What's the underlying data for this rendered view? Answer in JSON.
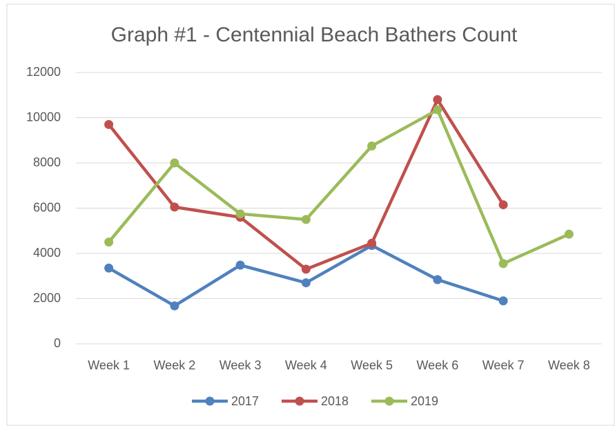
{
  "chart_data": {
    "type": "line",
    "title": "Graph #1 - Centennial Beach Bathers Count",
    "categories": [
      "Week 1",
      "Week 2",
      "Week 3",
      "Week 4",
      "Week 5",
      "Week 6",
      "Week 7",
      "Week 8"
    ],
    "series": [
      {
        "name": "2017",
        "color": "#4f81bd",
        "values": [
          3350,
          1680,
          3480,
          2700,
          4350,
          2840,
          1900,
          null
        ]
      },
      {
        "name": "2018",
        "color": "#c0504d",
        "values": [
          9700,
          6050,
          5600,
          3300,
          4450,
          10800,
          6150,
          null
        ]
      },
      {
        "name": "2019",
        "color": "#9bbb59",
        "values": [
          4500,
          8000,
          5750,
          5500,
          8750,
          10350,
          3550,
          4850
        ]
      }
    ],
    "ylim": [
      0,
      12000
    ],
    "yticks": [
      0,
      2000,
      4000,
      6000,
      8000,
      10000,
      12000
    ],
    "grid": true,
    "legend": "bottom"
  }
}
